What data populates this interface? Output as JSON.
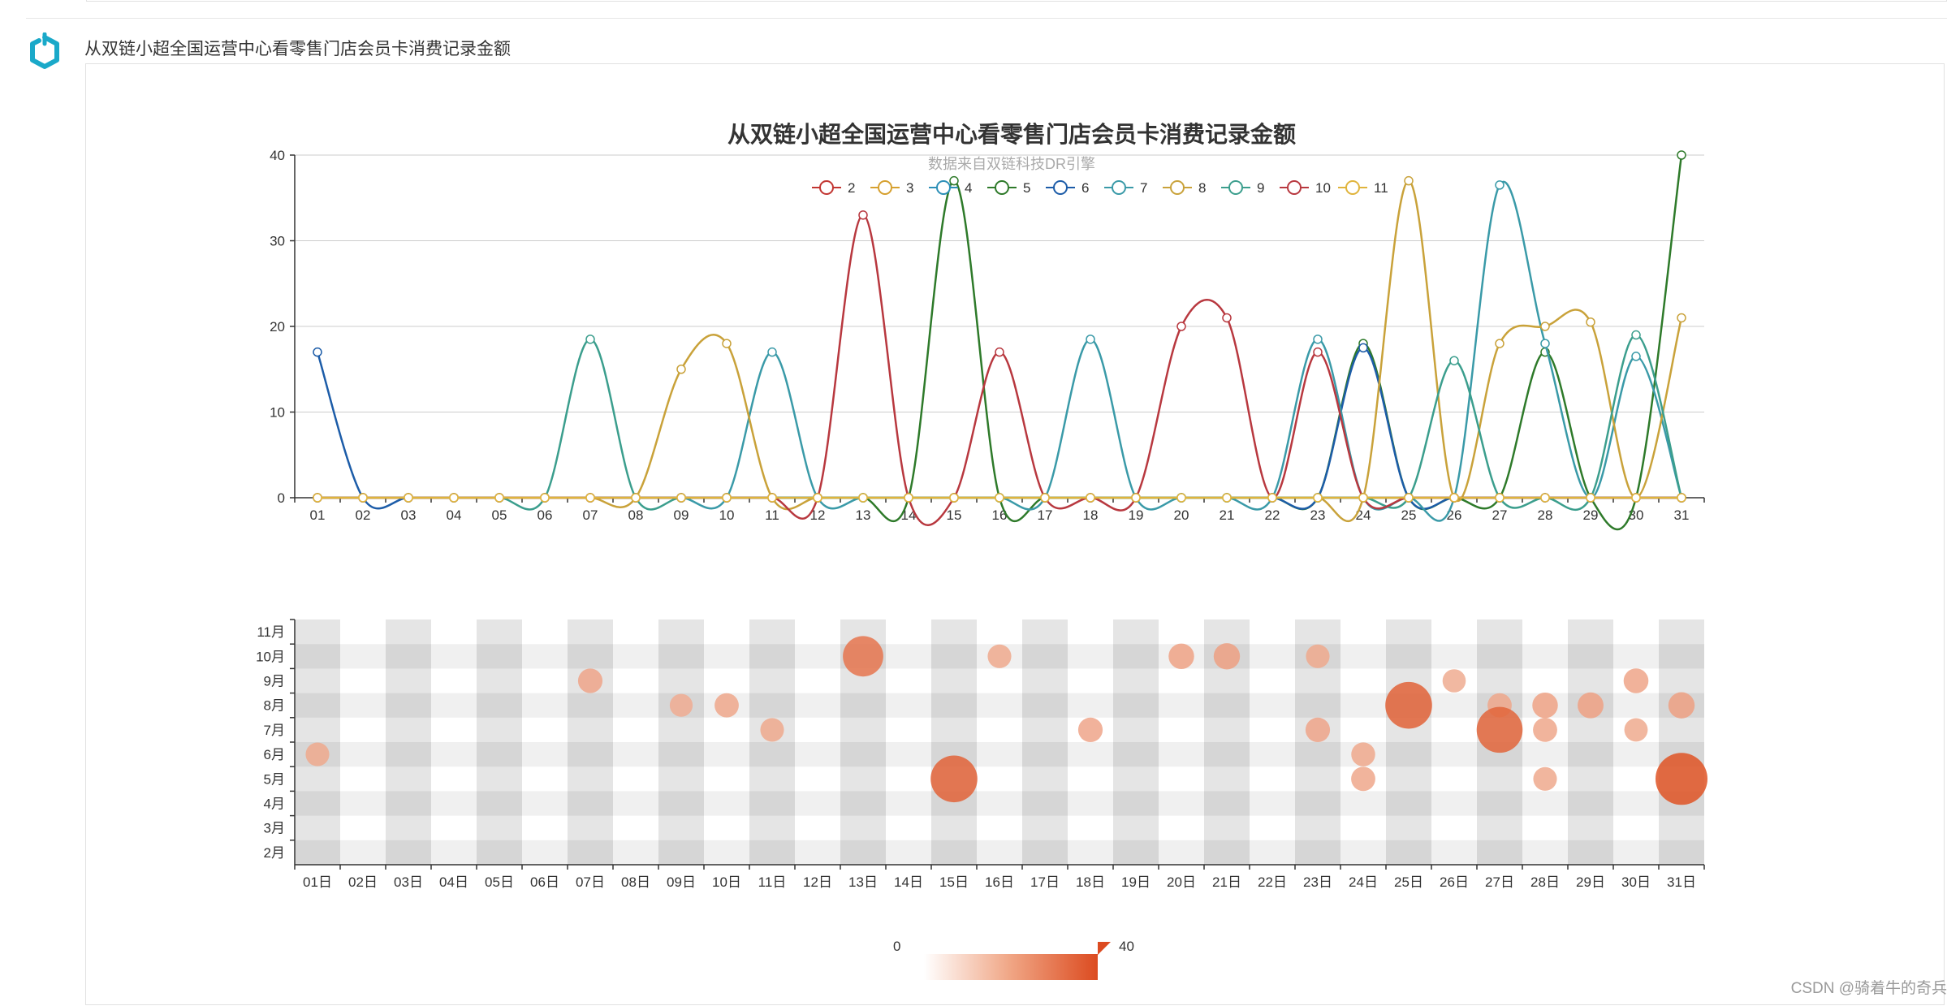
{
  "header": {
    "title": "从双链小超全国运营中心看零售门店会员卡消费记录金额"
  },
  "watermark": "CSDN @骑着牛的奇兵",
  "colors": {
    "logo": "#1aa9c9",
    "series": [
      "#c23531",
      "#d6a02f",
      "#2c8fb7",
      "#2e7a2a",
      "#1c5ca8",
      "#3a9aa8",
      "#c9a23a",
      "#3b9e8d",
      "#b8383f",
      "#e0b43c"
    ],
    "bubble": "#df5325",
    "bubble_light": "#f2b8a0"
  },
  "chart_data": [
    {
      "type": "line",
      "title": "从双链小超全国运营中心看零售门店会员卡消费记录金额",
      "subtitle": "数据来自双链科技DR引擎",
      "categories": [
        "01",
        "02",
        "03",
        "04",
        "05",
        "06",
        "07",
        "08",
        "09",
        "10",
        "11",
        "12",
        "13",
        "14",
        "15",
        "16",
        "17",
        "18",
        "19",
        "20",
        "21",
        "22",
        "23",
        "24",
        "25",
        "26",
        "27",
        "28",
        "29",
        "30",
        "31"
      ],
      "ylim": [
        0,
        40
      ],
      "yticks": [
        0,
        10,
        20,
        30,
        40
      ],
      "grid": true,
      "legend_position": "top-center",
      "series": [
        {
          "name": "2",
          "values": [
            0,
            0,
            0,
            0,
            0,
            0,
            0,
            0,
            0,
            0,
            0,
            0,
            0,
            0,
            0,
            0,
            0,
            0,
            0,
            0,
            0,
            0,
            0,
            0,
            0,
            0,
            0,
            0,
            0,
            0,
            0
          ]
        },
        {
          "name": "3",
          "values": [
            0,
            0,
            0,
            0,
            0,
            0,
            0,
            0,
            0,
            0,
            0,
            0,
            0,
            0,
            0,
            0,
            0,
            0,
            0,
            0,
            0,
            0,
            0,
            0,
            0,
            0,
            0,
            0,
            0,
            0,
            0
          ]
        },
        {
          "name": "4",
          "values": [
            0,
            0,
            0,
            0,
            0,
            0,
            0,
            0,
            0,
            0,
            0,
            0,
            0,
            0,
            0,
            0,
            0,
            0,
            0,
            0,
            0,
            0,
            0,
            0,
            0,
            0,
            0,
            0,
            0,
            0,
            0
          ]
        },
        {
          "name": "5",
          "values": [
            0,
            0,
            0,
            0,
            0,
            0,
            0,
            0,
            0,
            0,
            0,
            0,
            0,
            0,
            37,
            0,
            0,
            0,
            0,
            0,
            0,
            0,
            0,
            18,
            0,
            0,
            0,
            17,
            0,
            0,
            40
          ]
        },
        {
          "name": "6",
          "values": [
            17,
            0,
            0,
            0,
            0,
            0,
            0,
            0,
            0,
            0,
            0,
            0,
            0,
            0,
            0,
            0,
            0,
            0,
            0,
            0,
            0,
            0,
            0,
            17.5,
            0,
            0,
            0,
            0,
            0,
            0,
            0
          ]
        },
        {
          "name": "7",
          "values": [
            0,
            0,
            0,
            0,
            0,
            0,
            0,
            0,
            0,
            0,
            17,
            0,
            0,
            0,
            0,
            0,
            0,
            18.5,
            0,
            0,
            0,
            0,
            18.5,
            0,
            0,
            0,
            36.5,
            18,
            0,
            16.5,
            0
          ]
        },
        {
          "name": "8",
          "values": [
            0,
            0,
            0,
            0,
            0,
            0,
            0,
            0,
            15,
            18,
            0,
            0,
            0,
            0,
            0,
            0,
            0,
            0,
            0,
            0,
            0,
            0,
            0,
            0,
            37,
            0,
            18,
            20,
            20.5,
            0,
            21
          ]
        },
        {
          "name": "9",
          "values": [
            0,
            0,
            0,
            0,
            0,
            0,
            18.5,
            0,
            0,
            0,
            0,
            0,
            0,
            0,
            0,
            0,
            0,
            0,
            0,
            0,
            0,
            0,
            0,
            0,
            0,
            16,
            0,
            0,
            0,
            19,
            0
          ]
        },
        {
          "name": "10",
          "values": [
            0,
            0,
            0,
            0,
            0,
            0,
            0,
            0,
            0,
            0,
            0,
            0,
            33,
            0,
            0,
            17,
            0,
            0,
            0,
            20,
            21,
            0,
            17,
            0,
            0,
            0,
            0,
            0,
            0,
            0,
            0
          ]
        },
        {
          "name": "11",
          "values": [
            0,
            0,
            0,
            0,
            0,
            0,
            0,
            0,
            0,
            0,
            0,
            0,
            0,
            0,
            0,
            0,
            0,
            0,
            0,
            0,
            0,
            0,
            0,
            0,
            0,
            0,
            0,
            0,
            0,
            0,
            0
          ]
        }
      ]
    },
    {
      "type": "scatter",
      "categories": [
        "01日",
        "02日",
        "03日",
        "04日",
        "05日",
        "06日",
        "07日",
        "08日",
        "09日",
        "10日",
        "11日",
        "12日",
        "13日",
        "14日",
        "15日",
        "16日",
        "17日",
        "18日",
        "19日",
        "20日",
        "21日",
        "22日",
        "23日",
        "24日",
        "25日",
        "26日",
        "27日",
        "28日",
        "29日",
        "30日",
        "31日"
      ],
      "y_categories": [
        "2月",
        "3月",
        "4月",
        "5月",
        "6月",
        "7月",
        "8月",
        "9月",
        "10月",
        "11月"
      ],
      "visual_map": {
        "min_label": "0",
        "max_label": "40",
        "min": 0,
        "max": 40
      },
      "points": [
        {
          "x": "01日",
          "y": "6月",
          "value": 17
        },
        {
          "x": "07日",
          "y": "9月",
          "value": 18.5
        },
        {
          "x": "09日",
          "y": "8月",
          "value": 15
        },
        {
          "x": "10日",
          "y": "8月",
          "value": 18
        },
        {
          "x": "11日",
          "y": "7月",
          "value": 17
        },
        {
          "x": "13日",
          "y": "10月",
          "value": 33
        },
        {
          "x": "15日",
          "y": "5月",
          "value": 37
        },
        {
          "x": "16日",
          "y": "10月",
          "value": 17
        },
        {
          "x": "18日",
          "y": "7月",
          "value": 18.5
        },
        {
          "x": "20日",
          "y": "10月",
          "value": 20
        },
        {
          "x": "21日",
          "y": "10月",
          "value": 21
        },
        {
          "x": "23日",
          "y": "10月",
          "value": 17
        },
        {
          "x": "23日",
          "y": "7月",
          "value": 18.5
        },
        {
          "x": "24日",
          "y": "6月",
          "value": 17.5
        },
        {
          "x": "24日",
          "y": "5月",
          "value": 18
        },
        {
          "x": "25日",
          "y": "8月",
          "value": 37
        },
        {
          "x": "26日",
          "y": "9月",
          "value": 16
        },
        {
          "x": "27日",
          "y": "8月",
          "value": 18
        },
        {
          "x": "27日",
          "y": "7月",
          "value": 36.5
        },
        {
          "x": "28日",
          "y": "8月",
          "value": 20
        },
        {
          "x": "28日",
          "y": "7月",
          "value": 18
        },
        {
          "x": "28日",
          "y": "5月",
          "value": 17
        },
        {
          "x": "29日",
          "y": "8月",
          "value": 20.5
        },
        {
          "x": "30日",
          "y": "9月",
          "value": 19
        },
        {
          "x": "30日",
          "y": "7月",
          "value": 16.5
        },
        {
          "x": "31日",
          "y": "8月",
          "value": 21
        },
        {
          "x": "31日",
          "y": "5月",
          "value": 40
        }
      ]
    }
  ]
}
